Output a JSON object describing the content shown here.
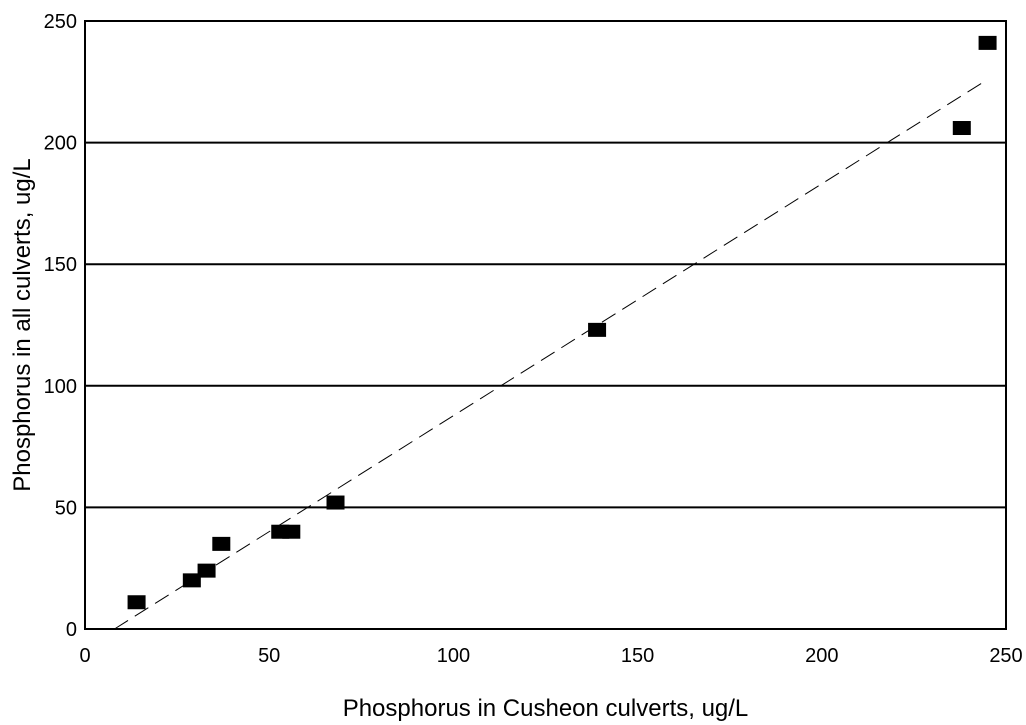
{
  "chart_data": {
    "type": "scatter",
    "title": "",
    "xlabel": "Phosphorus in Cusheon culverts, ug/L",
    "ylabel": "Phosphorus in all culverts, ug/L",
    "xlim": [
      0,
      250
    ],
    "ylim": [
      0,
      250
    ],
    "xticks": [
      0,
      50,
      100,
      150,
      200,
      250
    ],
    "yticks": [
      0,
      50,
      100,
      150,
      200,
      250
    ],
    "horizontal_gridlines": true,
    "legend": "none",
    "marker": "square",
    "marker_color": "#000000",
    "series": [
      {
        "points": [
          {
            "x": 14,
            "y": 11
          },
          {
            "x": 29,
            "y": 20
          },
          {
            "x": 33,
            "y": 24
          },
          {
            "x": 37,
            "y": 35
          },
          {
            "x": 53,
            "y": 40
          },
          {
            "x": 56,
            "y": 40
          },
          {
            "x": 68,
            "y": 52
          },
          {
            "x": 139,
            "y": 123
          },
          {
            "x": 238,
            "y": 206
          },
          {
            "x": 245,
            "y": 241
          }
        ]
      }
    ],
    "trendline": {
      "style": "dashed",
      "from": {
        "x": 8,
        "y": 0
      },
      "to": {
        "x": 244,
        "y": 225
      }
    }
  }
}
